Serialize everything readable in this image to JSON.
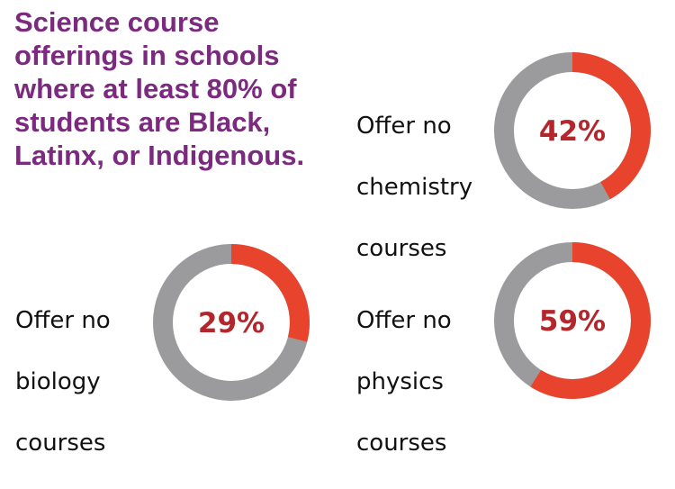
{
  "title": "Science course offerings in schools where at least 80% of students are Black, Latinx, or Indigenous.",
  "colors": {
    "title": "#7b2a7f",
    "accent": "#e8432d",
    "remainder": "#9b9a9d",
    "percent_text": "#b3262c"
  },
  "chart_data": [
    {
      "type": "pie",
      "label": "Offer no chemistry courses",
      "label_lines": [
        "Offer no",
        "chemistry",
        "courses"
      ],
      "value": 42,
      "value_label": "42%",
      "unit": "%"
    },
    {
      "type": "pie",
      "label": "Offer no biology courses",
      "label_lines": [
        "Offer no",
        "biology",
        "courses"
      ],
      "value": 29,
      "value_label": "29%",
      "unit": "%"
    },
    {
      "type": "pie",
      "label": "Offer no physics courses",
      "label_lines": [
        "Offer no",
        "physics",
        "courses"
      ],
      "value": 59,
      "value_label": "59%",
      "unit": "%"
    }
  ]
}
